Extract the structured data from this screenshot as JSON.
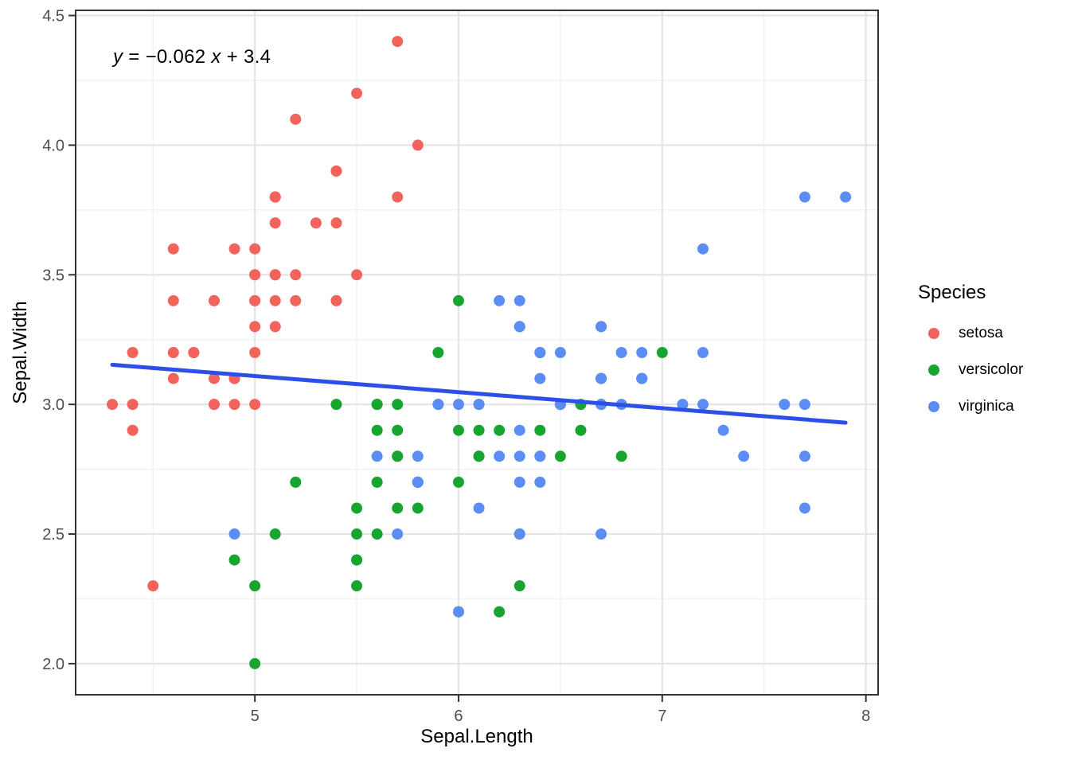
{
  "annotation": {
    "equation_text": "y = −0.062 x + 3.4",
    "parts": [
      {
        "text": "y",
        "italic": true
      },
      {
        "text": " = −0.062 ",
        "italic": false
      },
      {
        "text": "x",
        "italic": true
      },
      {
        "text": " + 3.4",
        "italic": false
      }
    ]
  },
  "axes": {
    "x": {
      "label": "Sepal.Length",
      "tick_labels": [
        "5",
        "6",
        "7",
        "8"
      ],
      "tick_values": [
        5,
        6,
        7,
        8
      ]
    },
    "y": {
      "label": "Sepal.Width",
      "tick_labels": [
        "2.0",
        "2.5",
        "3.0",
        "3.5",
        "4.0",
        "4.5"
      ],
      "tick_values": [
        2.0,
        2.5,
        3.0,
        3.5,
        4.0,
        4.5
      ]
    }
  },
  "legend": {
    "title": "Species",
    "items": [
      {
        "label": "setosa",
        "color": "#F2635C"
      },
      {
        "label": "versicolor",
        "color": "#17A52F"
      },
      {
        "label": "virginica",
        "color": "#5C8DF5"
      }
    ]
  },
  "style_colors": {
    "grid_major": "#E5E5E5",
    "grid_minor": "#F2F2F2",
    "panel_border": "#333333",
    "tick_mark": "#333333",
    "tick_text": "#4D4D4D",
    "regression_line": "#2C4FE8"
  },
  "chart_data": {
    "type": "scatter",
    "title": "",
    "xlabel": "Sepal.Length",
    "ylabel": "Sepal.Width",
    "xlim": [
      4.12,
      8.06
    ],
    "ylim": [
      1.88,
      4.52
    ],
    "grid": true,
    "legend_position": "right",
    "point_radius": 7,
    "series": [
      {
        "name": "setosa",
        "color": "#F2635C",
        "points": [
          [
            5.1,
            3.5
          ],
          [
            4.9,
            3.0
          ],
          [
            4.7,
            3.2
          ],
          [
            4.6,
            3.1
          ],
          [
            5.0,
            3.6
          ],
          [
            5.4,
            3.9
          ],
          [
            4.6,
            3.4
          ],
          [
            5.0,
            3.4
          ],
          [
            4.4,
            2.9
          ],
          [
            4.9,
            3.1
          ],
          [
            5.4,
            3.7
          ],
          [
            4.8,
            3.4
          ],
          [
            4.8,
            3.0
          ],
          [
            4.3,
            3.0
          ],
          [
            5.8,
            4.0
          ],
          [
            5.7,
            4.4
          ],
          [
            5.4,
            3.9
          ],
          [
            5.1,
            3.5
          ],
          [
            5.7,
            3.8
          ],
          [
            5.1,
            3.8
          ],
          [
            5.4,
            3.4
          ],
          [
            5.1,
            3.7
          ],
          [
            4.6,
            3.6
          ],
          [
            5.1,
            3.3
          ],
          [
            4.8,
            3.4
          ],
          [
            5.0,
            3.0
          ],
          [
            5.0,
            3.4
          ],
          [
            5.2,
            3.5
          ],
          [
            5.2,
            3.4
          ],
          [
            4.7,
            3.2
          ],
          [
            4.8,
            3.1
          ],
          [
            5.4,
            3.4
          ],
          [
            5.2,
            4.1
          ],
          [
            5.5,
            4.2
          ],
          [
            4.9,
            3.1
          ],
          [
            5.0,
            3.2
          ],
          [
            5.5,
            3.5
          ],
          [
            4.9,
            3.6
          ],
          [
            4.4,
            3.0
          ],
          [
            5.1,
            3.4
          ],
          [
            5.0,
            3.5
          ],
          [
            4.5,
            2.3
          ],
          [
            4.4,
            3.2
          ],
          [
            5.0,
            3.5
          ],
          [
            5.1,
            3.8
          ],
          [
            4.8,
            3.0
          ],
          [
            5.1,
            3.8
          ],
          [
            4.6,
            3.2
          ],
          [
            5.3,
            3.7
          ],
          [
            5.0,
            3.3
          ]
        ]
      },
      {
        "name": "versicolor",
        "color": "#17A52F",
        "points": [
          [
            7.0,
            3.2
          ],
          [
            6.4,
            3.2
          ],
          [
            6.9,
            3.1
          ],
          [
            5.5,
            2.3
          ],
          [
            6.5,
            2.8
          ],
          [
            5.7,
            2.8
          ],
          [
            6.3,
            3.3
          ],
          [
            4.9,
            2.4
          ],
          [
            6.6,
            2.9
          ],
          [
            5.2,
            2.7
          ],
          [
            5.0,
            2.0
          ],
          [
            5.9,
            3.0
          ],
          [
            6.0,
            2.2
          ],
          [
            6.1,
            2.9
          ],
          [
            5.6,
            2.9
          ],
          [
            6.7,
            3.1
          ],
          [
            5.6,
            3.0
          ],
          [
            5.8,
            2.7
          ],
          [
            6.2,
            2.2
          ],
          [
            5.6,
            2.5
          ],
          [
            5.9,
            3.2
          ],
          [
            6.1,
            2.8
          ],
          [
            6.3,
            2.5
          ],
          [
            6.1,
            2.8
          ],
          [
            6.4,
            2.9
          ],
          [
            6.6,
            3.0
          ],
          [
            6.8,
            2.8
          ],
          [
            6.7,
            3.0
          ],
          [
            6.0,
            2.9
          ],
          [
            5.7,
            2.6
          ],
          [
            5.5,
            2.4
          ],
          [
            5.5,
            2.4
          ],
          [
            5.8,
            2.7
          ],
          [
            6.0,
            2.7
          ],
          [
            5.4,
            3.0
          ],
          [
            6.0,
            3.4
          ],
          [
            6.7,
            3.1
          ],
          [
            6.3,
            2.3
          ],
          [
            5.6,
            3.0
          ],
          [
            5.5,
            2.5
          ],
          [
            5.5,
            2.6
          ],
          [
            6.1,
            3.0
          ],
          [
            5.8,
            2.6
          ],
          [
            5.0,
            2.3
          ],
          [
            5.6,
            2.7
          ],
          [
            5.7,
            3.0
          ],
          [
            5.7,
            2.9
          ],
          [
            6.2,
            2.9
          ],
          [
            5.1,
            2.5
          ],
          [
            5.7,
            2.8
          ]
        ]
      },
      {
        "name": "virginica",
        "color": "#5C8DF5",
        "points": [
          [
            6.3,
            3.3
          ],
          [
            5.8,
            2.7
          ],
          [
            7.1,
            3.0
          ],
          [
            6.3,
            2.9
          ],
          [
            6.5,
            3.0
          ],
          [
            7.6,
            3.0
          ],
          [
            4.9,
            2.5
          ],
          [
            7.3,
            2.9
          ],
          [
            6.7,
            2.5
          ],
          [
            7.2,
            3.6
          ],
          [
            6.5,
            3.2
          ],
          [
            6.4,
            2.7
          ],
          [
            6.8,
            3.0
          ],
          [
            5.7,
            2.5
          ],
          [
            5.8,
            2.8
          ],
          [
            6.4,
            3.2
          ],
          [
            6.5,
            3.0
          ],
          [
            7.7,
            3.8
          ],
          [
            7.7,
            2.6
          ],
          [
            6.0,
            2.2
          ],
          [
            6.9,
            3.2
          ],
          [
            5.6,
            2.8
          ],
          [
            7.7,
            2.8
          ],
          [
            6.3,
            2.7
          ],
          [
            6.7,
            3.3
          ],
          [
            7.2,
            3.2
          ],
          [
            6.2,
            2.8
          ],
          [
            6.1,
            3.0
          ],
          [
            6.4,
            2.8
          ],
          [
            7.2,
            3.0
          ],
          [
            7.4,
            2.8
          ],
          [
            7.9,
            3.8
          ],
          [
            6.4,
            2.8
          ],
          [
            6.3,
            2.8
          ],
          [
            6.1,
            2.6
          ],
          [
            7.7,
            3.0
          ],
          [
            6.3,
            3.4
          ],
          [
            6.4,
            3.1
          ],
          [
            6.0,
            3.0
          ],
          [
            6.9,
            3.1
          ],
          [
            6.7,
            3.1
          ],
          [
            6.9,
            3.1
          ],
          [
            5.8,
            2.7
          ],
          [
            6.8,
            3.2
          ],
          [
            6.7,
            3.3
          ],
          [
            6.7,
            3.0
          ],
          [
            6.3,
            2.5
          ],
          [
            6.5,
            3.0
          ],
          [
            6.2,
            3.4
          ],
          [
            5.9,
            3.0
          ]
        ]
      }
    ],
    "regression_line": {
      "equation": "y = −0.062 x + 3.4",
      "slope": -0.062,
      "intercept": 3.4,
      "x_start": 4.3,
      "x_end": 7.9,
      "color": "#2C4FE8",
      "width": 5
    }
  }
}
